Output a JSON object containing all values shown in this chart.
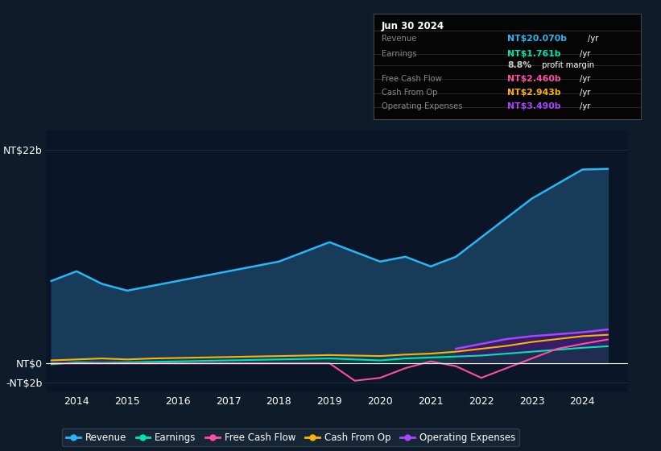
{
  "bg_color": "#0d1b2a",
  "plot_bg_color": "#0a1628",
  "grid_color": "#1e3050",
  "years_x": [
    2013.5,
    2014.0,
    2014.5,
    2015.0,
    2015.5,
    2016.0,
    2016.5,
    2017.0,
    2017.5,
    2018.0,
    2018.5,
    2019.0,
    2019.5,
    2020.0,
    2020.5,
    2021.0,
    2021.5,
    2022.0,
    2022.5,
    2023.0,
    2023.5,
    2024.0,
    2024.5
  ],
  "revenue": [
    8.5,
    9.5,
    8.2,
    7.5,
    8.0,
    8.5,
    9.0,
    9.5,
    10.0,
    10.5,
    11.5,
    12.5,
    11.5,
    10.5,
    11.0,
    10.0,
    11.0,
    13.0,
    15.0,
    17.0,
    18.5,
    20.0,
    20.07
  ],
  "earnings": [
    -0.1,
    0.1,
    0.05,
    0.1,
    0.15,
    0.2,
    0.25,
    0.3,
    0.35,
    0.4,
    0.45,
    0.5,
    0.4,
    0.3,
    0.5,
    0.6,
    0.7,
    0.8,
    1.0,
    1.2,
    1.4,
    1.6,
    1.761
  ],
  "free_cash_flow": [
    0.0,
    0.0,
    0.0,
    0.0,
    0.0,
    0.0,
    0.0,
    0.0,
    0.0,
    0.0,
    0.0,
    0.0,
    -1.8,
    -1.5,
    -0.5,
    0.2,
    -0.3,
    -1.5,
    -0.5,
    0.5,
    1.5,
    2.0,
    2.46
  ],
  "cash_from_op": [
    0.3,
    0.4,
    0.5,
    0.4,
    0.5,
    0.55,
    0.6,
    0.65,
    0.7,
    0.75,
    0.8,
    0.85,
    0.8,
    0.75,
    0.9,
    1.0,
    1.2,
    1.5,
    1.8,
    2.2,
    2.5,
    2.8,
    2.943
  ],
  "operating_expenses": [
    0.0,
    0.0,
    0.0,
    0.0,
    0.0,
    0.0,
    0.0,
    0.0,
    0.0,
    0.0,
    0.0,
    0.0,
    0.0,
    0.0,
    0.0,
    0.0,
    1.5,
    2.0,
    2.5,
    2.8,
    3.0,
    3.2,
    3.49
  ],
  "revenue_color": "#29b6f6",
  "earnings_color": "#00e5b0",
  "free_cash_flow_color": "#ff4da6",
  "cash_from_op_color": "#ffb300",
  "operating_expenses_color": "#aa44ff",
  "revenue_fill_color": "#1a4060",
  "operating_fill_color": "#3a1a6a",
  "xticks": [
    2014,
    2015,
    2016,
    2017,
    2018,
    2019,
    2020,
    2021,
    2022,
    2023,
    2024
  ],
  "legend_items": [
    "Revenue",
    "Earnings",
    "Free Cash Flow",
    "Cash From Op",
    "Operating Expenses"
  ],
  "legend_colors": [
    "#29b6f6",
    "#00e5b0",
    "#ff4da6",
    "#ffb300",
    "#aa44ff"
  ],
  "info_box_date": "Jun 30 2024",
  "info_box_rows": [
    {
      "label": "Revenue",
      "value": "NT$20.070b",
      "unit": "/yr",
      "value_color": "#29b6f6"
    },
    {
      "label": "Earnings",
      "value": "NT$1.761b",
      "unit": "/yr",
      "value_color": "#00e5b0"
    },
    {
      "label": "",
      "value": "8.8%",
      "unit": " profit margin",
      "value_color": "#cccccc"
    },
    {
      "label": "Free Cash Flow",
      "value": "NT$2.460b",
      "unit": "/yr",
      "value_color": "#ff4da6"
    },
    {
      "label": "Cash From Op",
      "value": "NT$2.943b",
      "unit": "/yr",
      "value_color": "#ffb300"
    },
    {
      "label": "Operating Expenses",
      "value": "NT$3.490b",
      "unit": "/yr",
      "value_color": "#aa44ff"
    }
  ]
}
